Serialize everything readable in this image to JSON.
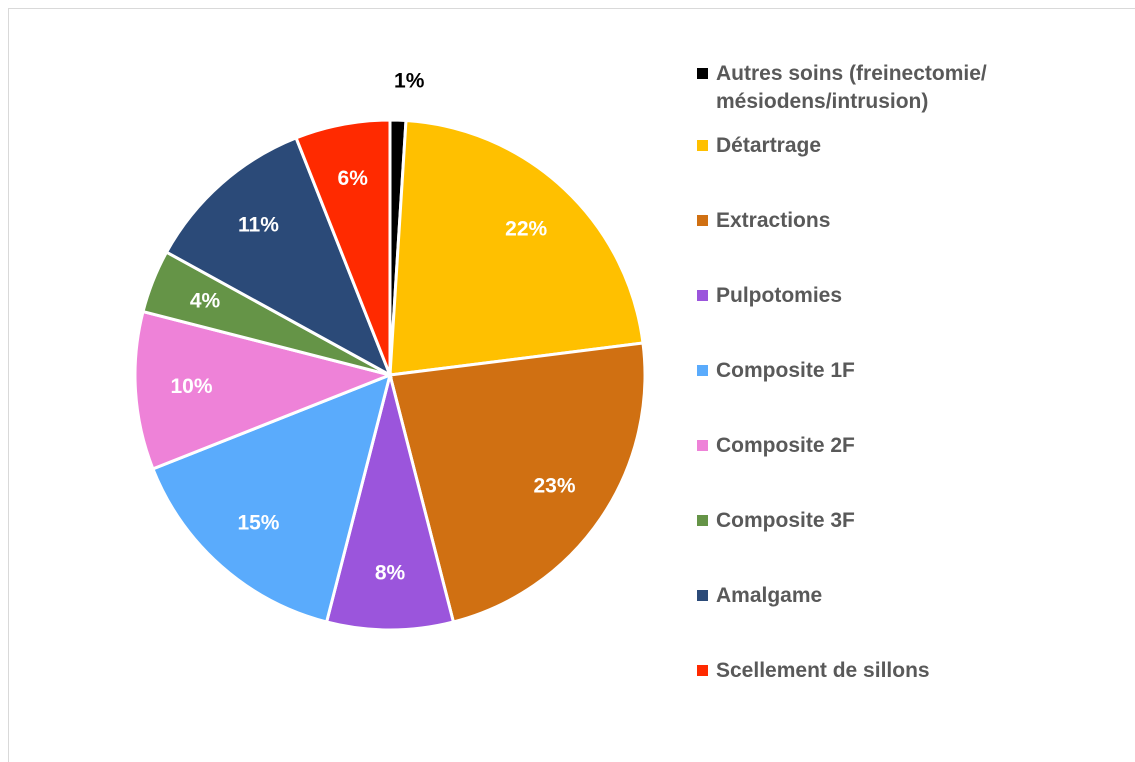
{
  "chart_data": {
    "type": "pie",
    "categories": [
      "Autres soins (freinectomie/ mésiodens/intrusion)",
      "Détartrage",
      "Extractions",
      "Pulpotomies",
      "Composite 1F",
      "Composite 2F",
      "Composite 3F",
      "Amalgame",
      "Scellement de sillons"
    ],
    "values": [
      1,
      22,
      23,
      8,
      15,
      10,
      4,
      11,
      6
    ],
    "value_labels": [
      "1%",
      "22%",
      "23%",
      "8%",
      "15%",
      "10%",
      "4%",
      "11%",
      "6%"
    ],
    "colors": [
      "#000000",
      "#ffc000",
      "#d07012",
      "#9b55dc",
      "#5aabfc",
      "#ee82d8",
      "#659447",
      "#2b4a78",
      "#ff2a00"
    ],
    "legend": "right"
  }
}
